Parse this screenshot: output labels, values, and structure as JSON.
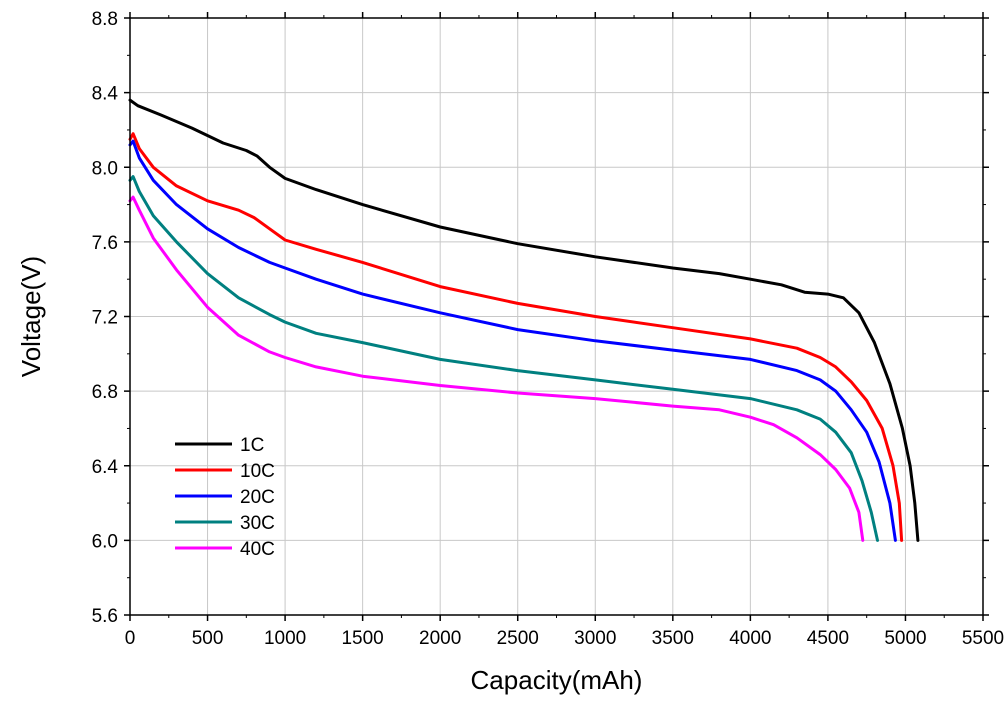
{
  "chart_data": {
    "type": "line",
    "title": "",
    "xlabel": "Capacity(mAh)",
    "ylabel": "Voltage(V)",
    "xlim": [
      0,
      5500
    ],
    "ylim": [
      5.6,
      8.8
    ],
    "x_ticks": [
      0,
      500,
      1000,
      1500,
      2000,
      2500,
      3000,
      3500,
      4000,
      4500,
      5000,
      5500
    ],
    "y_ticks": [
      5.6,
      6.0,
      6.4,
      6.8,
      7.2,
      7.6,
      8.0,
      8.4,
      8.8
    ],
    "x_tick_labels": [
      "0",
      "500",
      "1000",
      "1500",
      "2000",
      "2500",
      "3000",
      "3500",
      "4000",
      "4500",
      "5000",
      "5500"
    ],
    "y_tick_labels": [
      "5.6",
      "6.0",
      "6.4",
      "6.8",
      "7.2",
      "7.6",
      "8.0",
      "8.4",
      "8.8"
    ],
    "grid": true,
    "legend_position": "bottom-left",
    "series": [
      {
        "name": "1C",
        "color": "#000000",
        "points": [
          [
            0,
            8.36
          ],
          [
            50,
            8.33
          ],
          [
            200,
            8.28
          ],
          [
            400,
            8.21
          ],
          [
            600,
            8.13
          ],
          [
            750,
            8.09
          ],
          [
            820,
            8.06
          ],
          [
            900,
            8.0
          ],
          [
            1000,
            7.94
          ],
          [
            1200,
            7.88
          ],
          [
            1500,
            7.8
          ],
          [
            2000,
            7.68
          ],
          [
            2500,
            7.59
          ],
          [
            3000,
            7.52
          ],
          [
            3500,
            7.46
          ],
          [
            3800,
            7.43
          ],
          [
            4000,
            7.4
          ],
          [
            4200,
            7.37
          ],
          [
            4350,
            7.33
          ],
          [
            4500,
            7.32
          ],
          [
            4600,
            7.3
          ],
          [
            4700,
            7.22
          ],
          [
            4800,
            7.06
          ],
          [
            4900,
            6.84
          ],
          [
            4980,
            6.6
          ],
          [
            5030,
            6.4
          ],
          [
            5060,
            6.2
          ],
          [
            5080,
            6.0
          ]
        ]
      },
      {
        "name": "10C",
        "color": "#ff0000",
        "points": [
          [
            0,
            8.15
          ],
          [
            20,
            8.18
          ],
          [
            60,
            8.1
          ],
          [
            150,
            8.0
          ],
          [
            300,
            7.9
          ],
          [
            500,
            7.82
          ],
          [
            700,
            7.77
          ],
          [
            800,
            7.73
          ],
          [
            900,
            7.67
          ],
          [
            1000,
            7.61
          ],
          [
            1200,
            7.56
          ],
          [
            1500,
            7.49
          ],
          [
            2000,
            7.36
          ],
          [
            2500,
            7.27
          ],
          [
            3000,
            7.2
          ],
          [
            3500,
            7.14
          ],
          [
            4000,
            7.08
          ],
          [
            4300,
            7.03
          ],
          [
            4450,
            6.98
          ],
          [
            4550,
            6.93
          ],
          [
            4650,
            6.85
          ],
          [
            4750,
            6.75
          ],
          [
            4850,
            6.6
          ],
          [
            4920,
            6.4
          ],
          [
            4960,
            6.2
          ],
          [
            4975,
            6.0
          ]
        ]
      },
      {
        "name": "20C",
        "color": "#0000ff",
        "points": [
          [
            0,
            8.12
          ],
          [
            20,
            8.14
          ],
          [
            60,
            8.05
          ],
          [
            150,
            7.93
          ],
          [
            300,
            7.8
          ],
          [
            500,
            7.67
          ],
          [
            700,
            7.57
          ],
          [
            900,
            7.49
          ],
          [
            1000,
            7.46
          ],
          [
            1200,
            7.4
          ],
          [
            1500,
            7.32
          ],
          [
            2000,
            7.22
          ],
          [
            2500,
            7.13
          ],
          [
            3000,
            7.07
          ],
          [
            3500,
            7.02
          ],
          [
            4000,
            6.97
          ],
          [
            4300,
            6.91
          ],
          [
            4450,
            6.86
          ],
          [
            4550,
            6.8
          ],
          [
            4650,
            6.7
          ],
          [
            4750,
            6.58
          ],
          [
            4830,
            6.42
          ],
          [
            4900,
            6.2
          ],
          [
            4935,
            6.0
          ]
        ]
      },
      {
        "name": "30C",
        "color": "#008080",
        "points": [
          [
            0,
            7.93
          ],
          [
            20,
            7.95
          ],
          [
            60,
            7.87
          ],
          [
            150,
            7.74
          ],
          [
            300,
            7.6
          ],
          [
            500,
            7.43
          ],
          [
            700,
            7.3
          ],
          [
            900,
            7.21
          ],
          [
            1000,
            7.17
          ],
          [
            1200,
            7.11
          ],
          [
            1500,
            7.06
          ],
          [
            2000,
            6.97
          ],
          [
            2500,
            6.91
          ],
          [
            3000,
            6.86
          ],
          [
            3500,
            6.81
          ],
          [
            4000,
            6.76
          ],
          [
            4300,
            6.7
          ],
          [
            4450,
            6.65
          ],
          [
            4550,
            6.58
          ],
          [
            4650,
            6.47
          ],
          [
            4720,
            6.32
          ],
          [
            4780,
            6.15
          ],
          [
            4820,
            6.0
          ]
        ]
      },
      {
        "name": "40C",
        "color": "#ff00ff",
        "points": [
          [
            0,
            7.82
          ],
          [
            20,
            7.84
          ],
          [
            60,
            7.77
          ],
          [
            150,
            7.62
          ],
          [
            300,
            7.45
          ],
          [
            500,
            7.25
          ],
          [
            700,
            7.1
          ],
          [
            900,
            7.01
          ],
          [
            1000,
            6.98
          ],
          [
            1200,
            6.93
          ],
          [
            1500,
            6.88
          ],
          [
            2000,
            6.83
          ],
          [
            2500,
            6.79
          ],
          [
            3000,
            6.76
          ],
          [
            3500,
            6.72
          ],
          [
            3800,
            6.7
          ],
          [
            4000,
            6.66
          ],
          [
            4150,
            6.62
          ],
          [
            4300,
            6.55
          ],
          [
            4450,
            6.46
          ],
          [
            4550,
            6.38
          ],
          [
            4640,
            6.28
          ],
          [
            4700,
            6.15
          ],
          [
            4725,
            6.0
          ]
        ]
      }
    ]
  }
}
